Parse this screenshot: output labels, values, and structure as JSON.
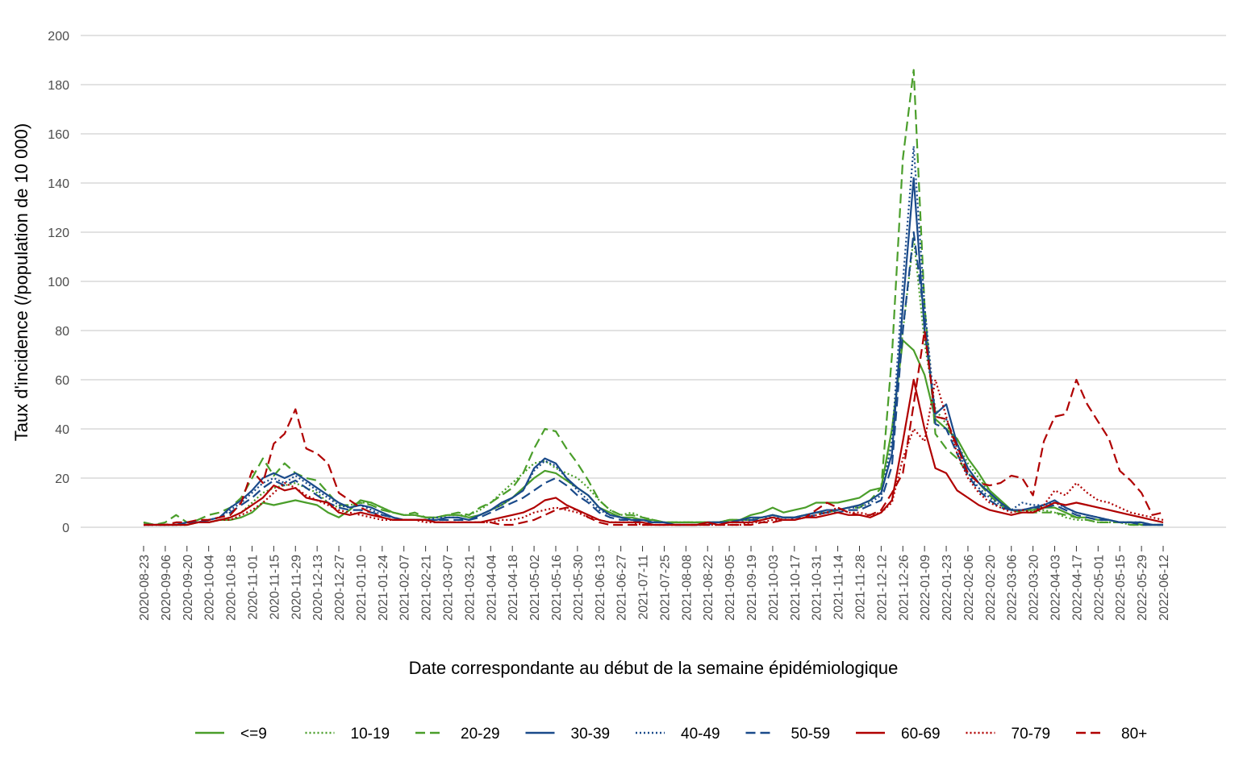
{
  "chart_data": {
    "type": "line",
    "xlabel": "Date correspondante au début de la semaine épidémiologique",
    "ylabel": "Taux d'incidence (/population de 10 000)",
    "categories": [
      "2020-08-23",
      null,
      "2020-09-06",
      null,
      "2020-09-20",
      null,
      "2020-10-04",
      null,
      "2020-10-18",
      null,
      "2020-11-01",
      null,
      "2020-11-15",
      null,
      "2020-11-29",
      null,
      "2020-12-13",
      null,
      "2020-12-27",
      null,
      "2021-01-10",
      null,
      "2021-01-24",
      null,
      "2021-02-07",
      null,
      "2021-02-21",
      null,
      "2021-03-07",
      null,
      "2021-03-21",
      null,
      "2021-04-04",
      null,
      "2021-04-18",
      null,
      "2021-05-02",
      null,
      "2021-05-16",
      null,
      "2021-05-30",
      null,
      "2021-06-13",
      null,
      "2021-06-27",
      null,
      "2021-07-11",
      null,
      "2021-07-25",
      null,
      "2021-08-08",
      null,
      "2021-08-22",
      null,
      "2021-09-05",
      null,
      "2021-09-19",
      null,
      "2021-10-03",
      null,
      "2021-10-17",
      null,
      "2021-10-31",
      null,
      "2021-11-14",
      null,
      "2021-11-28",
      null,
      "2021-12-12",
      null,
      "2021-12-26",
      null,
      "2022-01-09",
      null,
      "2022-01-23",
      null,
      "2022-02-06",
      null,
      "2022-02-20",
      null,
      "2022-03-06",
      null,
      "2022-03-20",
      null,
      "2022-04-03",
      null,
      "2022-04-17",
      null,
      "2022-05-01",
      null,
      "2022-05-15",
      null,
      "2022-05-29",
      null,
      "2022-06-12"
    ],
    "ylim": [
      -7,
      200
    ],
    "yticks": [
      0,
      20,
      40,
      60,
      80,
      100,
      120,
      140,
      160,
      180,
      200
    ],
    "grid": true,
    "legend": "bottom",
    "series": [
      {
        "name": "<=9",
        "color": "#4a9e2a",
        "dash": "solid",
        "values": [
          2,
          1,
          1,
          1,
          1,
          2,
          2,
          3,
          3,
          4,
          6,
          10,
          9,
          10,
          11,
          10,
          9,
          6,
          4,
          7,
          11,
          10,
          8,
          6,
          5,
          5,
          4,
          4,
          5,
          5,
          4,
          5,
          7,
          9,
          12,
          16,
          20,
          23,
          22,
          19,
          16,
          13,
          8,
          6,
          4,
          4,
          3,
          3,
          2,
          2,
          2,
          2,
          2,
          2,
          3,
          3,
          5,
          6,
          8,
          6,
          7,
          8,
          10,
          10,
          10,
          11,
          12,
          15,
          16,
          40,
          76,
          72,
          62,
          44,
          40,
          36,
          28,
          22,
          15,
          11,
          7,
          7,
          7,
          8,
          8,
          6,
          4,
          4,
          3,
          3,
          2,
          2,
          1,
          1,
          1
        ]
      },
      {
        "name": "10-19",
        "color": "#4a9e2a",
        "dash": "dotted",
        "values": [
          1,
          1,
          1,
          1,
          1,
          2,
          2,
          3,
          4,
          6,
          10,
          14,
          16,
          17,
          18,
          16,
          14,
          10,
          8,
          9,
          10,
          10,
          8,
          6,
          5,
          5,
          4,
          4,
          5,
          5,
          5,
          7,
          10,
          14,
          18,
          22,
          26,
          27,
          24,
          22,
          20,
          16,
          11,
          7,
          5,
          6,
          4,
          3,
          2,
          2,
          2,
          2,
          2,
          2,
          3,
          3,
          3,
          4,
          5,
          4,
          4,
          5,
          6,
          6,
          7,
          8,
          9,
          11,
          14,
          35,
          80,
          118,
          75,
          48,
          42,
          34,
          26,
          20,
          14,
          10,
          7,
          7,
          6,
          7,
          6,
          4,
          3,
          3,
          2,
          2,
          2,
          1,
          1,
          1,
          1
        ]
      },
      {
        "name": "20-29",
        "color": "#4a9e2a",
        "dash": "dashed",
        "values": [
          2,
          1,
          2,
          5,
          2,
          3,
          5,
          6,
          8,
          12,
          20,
          28,
          21,
          26,
          22,
          20,
          19,
          14,
          9,
          9,
          10,
          9,
          7,
          6,
          5,
          6,
          4,
          4,
          5,
          6,
          5,
          8,
          10,
          13,
          16,
          22,
          32,
          40,
          39,
          32,
          26,
          19,
          11,
          7,
          5,
          5,
          4,
          3,
          2,
          2,
          2,
          2,
          2,
          2,
          3,
          3,
          3,
          4,
          5,
          4,
          4,
          5,
          6,
          6,
          7,
          8,
          8,
          11,
          16,
          70,
          150,
          186,
          90,
          38,
          32,
          28,
          22,
          18,
          13,
          9,
          7,
          6,
          6,
          6,
          6,
          5,
          4,
          3,
          2,
          2,
          2,
          1,
          1,
          1,
          1
        ]
      },
      {
        "name": "30-39",
        "color": "#1a4a8a",
        "dash": "solid",
        "values": [
          1,
          1,
          1,
          1,
          2,
          2,
          3,
          4,
          8,
          11,
          15,
          20,
          22,
          20,
          22,
          19,
          16,
          13,
          10,
          8,
          9,
          8,
          6,
          4,
          3,
          3,
          3,
          3,
          4,
          4,
          3,
          5,
          7,
          10,
          12,
          15,
          24,
          28,
          26,
          20,
          16,
          13,
          8,
          5,
          4,
          3,
          3,
          2,
          2,
          1,
          1,
          1,
          2,
          2,
          2,
          3,
          4,
          4,
          5,
          4,
          4,
          5,
          6,
          7,
          7,
          8,
          9,
          11,
          14,
          30,
          90,
          142,
          80,
          46,
          50,
          34,
          24,
          18,
          14,
          10,
          7,
          7,
          8,
          9,
          11,
          8,
          6,
          5,
          4,
          3,
          2,
          2,
          2,
          1,
          1
        ]
      },
      {
        "name": "40-49",
        "color": "#1a4a8a",
        "dash": "dotted",
        "values": [
          1,
          1,
          1,
          1,
          2,
          2,
          3,
          4,
          7,
          10,
          14,
          18,
          20,
          18,
          21,
          18,
          15,
          12,
          9,
          8,
          9,
          7,
          5,
          4,
          3,
          3,
          3,
          4,
          4,
          4,
          3,
          5,
          7,
          9,
          12,
          15,
          23,
          27,
          25,
          20,
          15,
          11,
          7,
          5,
          4,
          3,
          3,
          2,
          2,
          1,
          1,
          1,
          2,
          2,
          2,
          3,
          3,
          4,
          4,
          4,
          4,
          5,
          6,
          6,
          7,
          8,
          8,
          10,
          13,
          35,
          100,
          155,
          90,
          45,
          44,
          32,
          22,
          16,
          12,
          9,
          7,
          10,
          9,
          9,
          10,
          8,
          6,
          5,
          4,
          3,
          2,
          2,
          2,
          1,
          1
        ]
      },
      {
        "name": "50-59",
        "color": "#1a4a8a",
        "dash": "dashed",
        "values": [
          1,
          1,
          1,
          1,
          2,
          2,
          3,
          4,
          6,
          9,
          12,
          16,
          19,
          17,
          19,
          16,
          13,
          10,
          8,
          7,
          7,
          6,
          5,
          4,
          3,
          3,
          3,
          3,
          3,
          3,
          3,
          4,
          6,
          8,
          10,
          12,
          15,
          18,
          20,
          17,
          13,
          10,
          6,
          4,
          3,
          3,
          2,
          2,
          2,
          1,
          1,
          1,
          1,
          2,
          2,
          2,
          3,
          3,
          4,
          3,
          4,
          4,
          5,
          6,
          6,
          7,
          7,
          9,
          11,
          25,
          80,
          120,
          85,
          42,
          40,
          30,
          21,
          15,
          11,
          8,
          7,
          7,
          8,
          8,
          9,
          7,
          5,
          4,
          3,
          3,
          2,
          2,
          1,
          1,
          1
        ]
      },
      {
        "name": "60-69",
        "color": "#b00000",
        "dash": "solid",
        "values": [
          1,
          1,
          1,
          1,
          1,
          2,
          2,
          3,
          4,
          6,
          9,
          12,
          17,
          15,
          16,
          12,
          11,
          10,
          6,
          5,
          6,
          5,
          4,
          3,
          3,
          3,
          3,
          2,
          2,
          2,
          2,
          2,
          3,
          4,
          5,
          6,
          8,
          11,
          12,
          9,
          7,
          5,
          3,
          2,
          2,
          2,
          2,
          1,
          1,
          1,
          1,
          1,
          2,
          1,
          2,
          2,
          2,
          3,
          4,
          3,
          3,
          4,
          4,
          5,
          6,
          5,
          5,
          4,
          6,
          11,
          35,
          60,
          40,
          24,
          22,
          15,
          12,
          9,
          7,
          6,
          5,
          6,
          6,
          8,
          10,
          9,
          10,
          9,
          8,
          7,
          6,
          5,
          4,
          3,
          2
        ]
      },
      {
        "name": "70-79",
        "color": "#b00000",
        "dash": "dotted",
        "values": [
          1,
          1,
          1,
          1,
          1,
          2,
          2,
          3,
          3,
          5,
          7,
          10,
          14,
          18,
          16,
          13,
          11,
          9,
          7,
          6,
          5,
          4,
          3,
          3,
          3,
          3,
          2,
          2,
          2,
          2,
          2,
          2,
          2,
          3,
          3,
          4,
          6,
          7,
          8,
          7,
          6,
          4,
          3,
          2,
          2,
          2,
          1,
          1,
          1,
          1,
          1,
          1,
          1,
          1,
          1,
          1,
          2,
          2,
          3,
          3,
          3,
          4,
          5,
          6,
          8,
          6,
          6,
          5,
          6,
          10,
          28,
          40,
          35,
          60,
          45,
          30,
          20,
          14,
          10,
          8,
          6,
          7,
          6,
          9,
          15,
          13,
          18,
          14,
          11,
          10,
          8,
          6,
          5,
          4,
          3
        ]
      },
      {
        "name": "80+",
        "color": "#b00000",
        "dash": "dashed",
        "values": [
          1,
          1,
          1,
          2,
          2,
          3,
          3,
          4,
          5,
          10,
          23,
          18,
          34,
          38,
          48,
          32,
          30,
          26,
          14,
          11,
          8,
          6,
          4,
          3,
          3,
          3,
          3,
          2,
          2,
          2,
          2,
          2,
          2,
          1,
          1,
          2,
          3,
          5,
          7,
          8,
          7,
          4,
          2,
          1,
          1,
          1,
          1,
          1,
          1,
          1,
          1,
          1,
          1,
          1,
          1,
          1,
          1,
          2,
          2,
          3,
          3,
          4,
          7,
          10,
          8,
          6,
          5,
          5,
          7,
          14,
          22,
          50,
          80,
          45,
          44,
          33,
          22,
          18,
          17,
          18,
          21,
          20,
          13,
          35,
          45,
          46,
          60,
          50,
          43,
          36,
          23,
          19,
          14,
          5,
          6
        ]
      }
    ]
  }
}
